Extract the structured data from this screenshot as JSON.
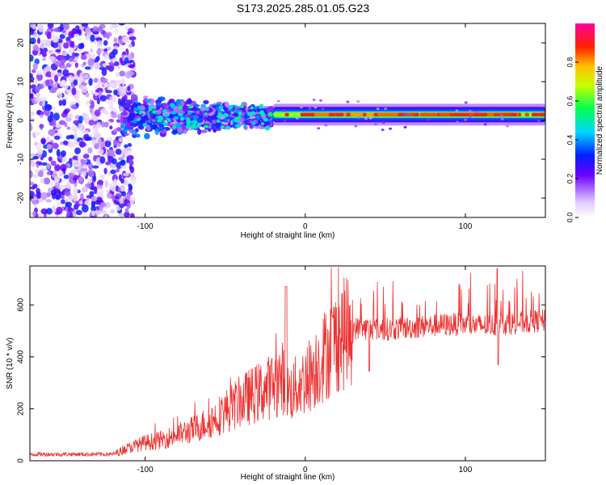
{
  "title": "S173.2025.285.01.05.G23",
  "chart_data": [
    {
      "type": "heatmap",
      "title": "S173.2025.285.01.05.G23",
      "xlabel": "Height of straight line (km)",
      "ylabel": "Frequency (Hz)",
      "xlim": [
        -172,
        150
      ],
      "ylim": [
        -25,
        25
      ],
      "xticks": [
        -100,
        0,
        100
      ],
      "yticks": [
        -20,
        -10,
        0,
        10,
        20
      ],
      "colorbar": {
        "label": "Normalized spectral amplitude",
        "range": [
          0,
          1
        ],
        "ticks": [
          "0.0",
          "0.2",
          "0.4",
          "0.6",
          "0.8"
        ]
      },
      "regions": [
        {
          "name": "noise",
          "x": [
            -172,
            -115
          ],
          "freq_spread": 25,
          "max_amplitude": 0.3
        },
        {
          "name": "onset",
          "x": [
            -115,
            -20
          ],
          "freq_center": 1,
          "freq_spread": 6,
          "max_amplitude": 0.5
        },
        {
          "name": "carrier",
          "x": [
            -20,
            150
          ],
          "freq_center": 1.5,
          "freq_spread": 1,
          "max_amplitude": 0.95
        }
      ]
    },
    {
      "type": "line",
      "xlabel": "Height of straight line (km)",
      "ylabel": "SNR (10 * v/v)",
      "xlim": [
        -172,
        150
      ],
      "ylim": [
        0,
        750
      ],
      "xticks": [
        -100,
        0,
        100
      ],
      "yticks": [
        0,
        200,
        400,
        600
      ],
      "series": [
        {
          "name": "SNR",
          "color": "#ee3030",
          "x": [
            -172,
            -120,
            -110,
            -100,
            -90,
            -80,
            -70,
            -60,
            -50,
            -40,
            -30,
            -20,
            -14,
            -10,
            0,
            10,
            20,
            30,
            40,
            50,
            60,
            70,
            80,
            90,
            100,
            110,
            120,
            130,
            140,
            150
          ],
          "y": [
            25,
            25,
            50,
            70,
            80,
            100,
            120,
            150,
            190,
            230,
            260,
            290,
            320,
            260,
            310,
            390,
            470,
            510,
            510,
            505,
            510,
            515,
            520,
            525,
            525,
            520,
            525,
            530,
            535,
            540
          ]
        }
      ]
    }
  ]
}
